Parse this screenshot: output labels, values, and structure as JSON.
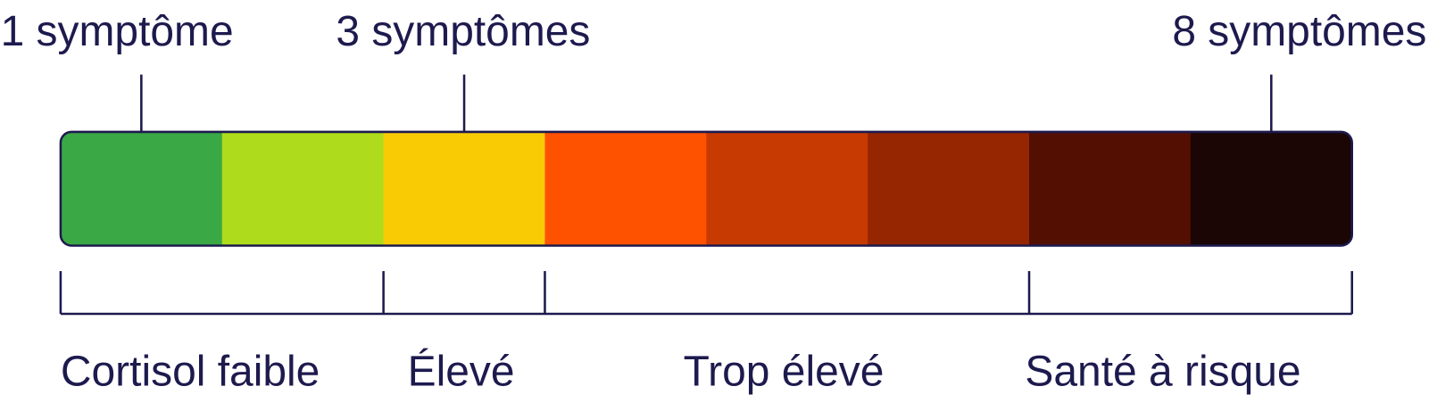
{
  "scale": {
    "segments": [
      "#3aa845",
      "#aedb1c",
      "#f9cb04",
      "#fe5200",
      "#c73a01",
      "#952601",
      "#520f02",
      "#1b0605"
    ],
    "markers": [
      {
        "label": "1 symptôme"
      },
      {
        "label": "3 symptômes"
      },
      {
        "label": "8 symptômes"
      }
    ],
    "ranges": [
      {
        "label": "Cortisol faible"
      },
      {
        "label": "Élevé"
      },
      {
        "label": "Trop élevé"
      },
      {
        "label": "Santé à risque"
      }
    ]
  }
}
